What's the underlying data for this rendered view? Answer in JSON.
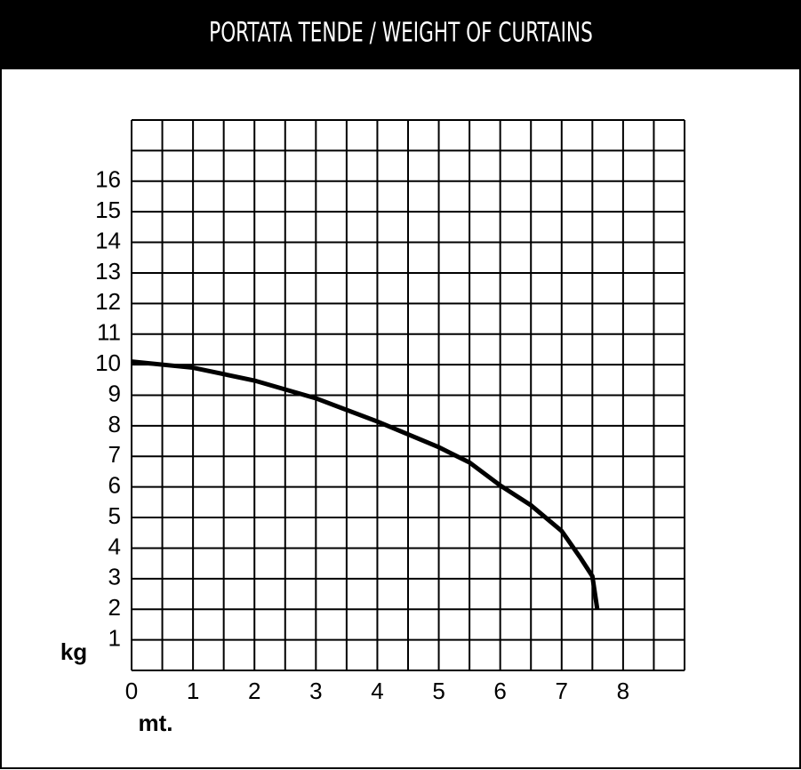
{
  "chart_data": {
    "type": "line",
    "title": "PORTATA TENDE / WEIGHT OF CURTAINS",
    "x_label": "mt.",
    "y_label": "kg",
    "x": [
      0,
      1,
      2,
      3,
      4,
      5,
      5.5,
      6,
      6.5,
      7,
      7.3,
      7.5,
      7.58
    ],
    "series": [
      {
        "color": "#000000",
        "values": [
          10.1,
          9.9,
          9.48,
          8.9,
          8.14,
          7.3,
          6.8,
          6.05,
          5.4,
          4.56,
          3.7,
          3.08,
          2.0
        ]
      }
    ],
    "xlim": [
      0,
      9
    ],
    "ylim": [
      0,
      18
    ],
    "xticks": [
      0,
      1,
      2,
      3,
      4,
      5,
      6,
      7,
      8
    ],
    "yticks": [
      1,
      2,
      3,
      4,
      5,
      6,
      7,
      8,
      9,
      10,
      11,
      12,
      13,
      14,
      15,
      16
    ],
    "xgrid": [
      0,
      0.5,
      1,
      1.5,
      2,
      2.5,
      3,
      3.5,
      4,
      4.5,
      5,
      5.5,
      6,
      6.5,
      7,
      7.5,
      8,
      8.5,
      9
    ],
    "ygrid": [
      0,
      1,
      2,
      3,
      4,
      5,
      6,
      7,
      8,
      9,
      10,
      11,
      12,
      13,
      14,
      15,
      16,
      17,
      18
    ],
    "grid": true
  }
}
